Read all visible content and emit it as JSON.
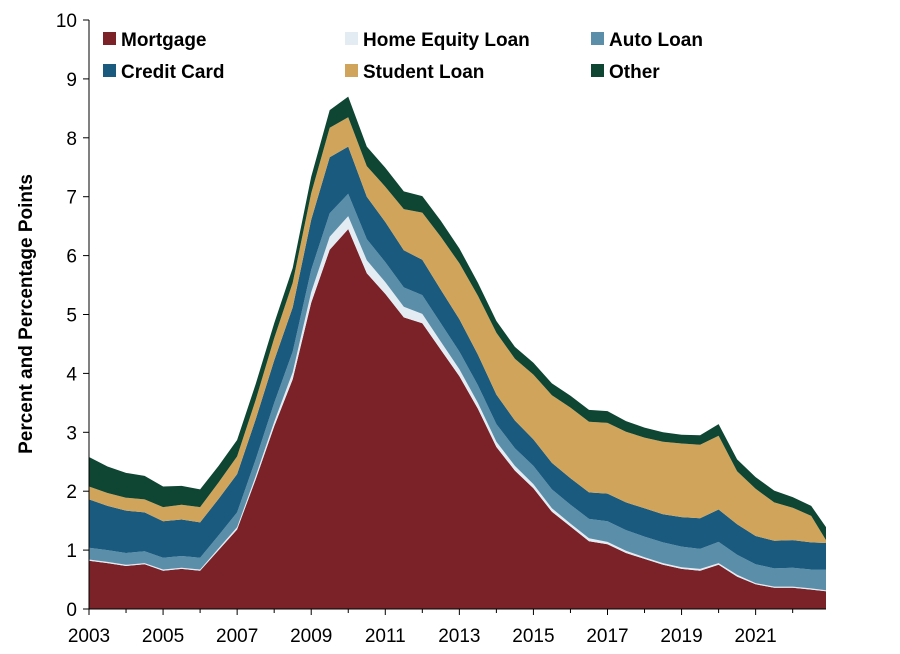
{
  "chart_data": {
    "type": "area",
    "stacked": true,
    "title": "",
    "xlabel": "",
    "ylabel": "Percent and Percentage Points",
    "xlim": [
      2003,
      2022.9
    ],
    "ylim": [
      0,
      10
    ],
    "x_ticks": [
      "2003",
      "2005",
      "2007",
      "2009",
      "2011",
      "2013",
      "2015",
      "2017",
      "2019",
      "2021"
    ],
    "y_ticks": [
      "0",
      "1",
      "2",
      "3",
      "4",
      "5",
      "6",
      "7",
      "8",
      "9",
      "10"
    ],
    "grid": false,
    "legend_position": "top",
    "x": [
      2003.0,
      2003.5,
      2004.0,
      2004.5,
      2005.0,
      2005.5,
      2006.0,
      2006.5,
      2007.0,
      2007.5,
      2008.0,
      2008.5,
      2009.0,
      2009.5,
      2010.0,
      2010.5,
      2011.0,
      2011.5,
      2012.0,
      2012.5,
      2013.0,
      2013.5,
      2014.0,
      2014.5,
      2015.0,
      2015.5,
      2016.0,
      2016.5,
      2017.0,
      2017.5,
      2018.0,
      2018.5,
      2019.0,
      2019.5,
      2020.0,
      2020.5,
      2021.0,
      2021.5,
      2022.0,
      2022.5,
      2022.9
    ],
    "series": [
      {
        "name": "Mortgage",
        "color": "#7b2229",
        "values": [
          0.82,
          0.78,
          0.73,
          0.76,
          0.65,
          0.68,
          0.65,
          1.0,
          1.35,
          2.2,
          3.1,
          3.9,
          5.2,
          6.1,
          6.45,
          5.7,
          5.35,
          4.95,
          4.85,
          4.4,
          3.95,
          3.4,
          2.75,
          2.35,
          2.05,
          1.65,
          1.4,
          1.15,
          1.1,
          0.95,
          0.85,
          0.75,
          0.68,
          0.65,
          0.75,
          0.55,
          0.42,
          0.36,
          0.36,
          0.33,
          0.3
        ]
      },
      {
        "name": "Home Equity Loan",
        "color": "#e3ecf3",
        "values": [
          0.02,
          0.02,
          0.02,
          0.02,
          0.02,
          0.02,
          0.02,
          0.03,
          0.04,
          0.06,
          0.08,
          0.12,
          0.18,
          0.22,
          0.22,
          0.22,
          0.2,
          0.18,
          0.16,
          0.14,
          0.12,
          0.1,
          0.09,
          0.08,
          0.07,
          0.06,
          0.05,
          0.05,
          0.04,
          0.04,
          0.03,
          0.03,
          0.03,
          0.03,
          0.03,
          0.03,
          0.02,
          0.02,
          0.02,
          0.02,
          0.02
        ]
      },
      {
        "name": "Auto Loan",
        "color": "#5a8ea9",
        "values": [
          0.2,
          0.2,
          0.2,
          0.2,
          0.2,
          0.2,
          0.2,
          0.22,
          0.25,
          0.28,
          0.32,
          0.35,
          0.38,
          0.4,
          0.38,
          0.36,
          0.34,
          0.33,
          0.32,
          0.31,
          0.3,
          0.3,
          0.3,
          0.3,
          0.31,
          0.32,
          0.32,
          0.33,
          0.35,
          0.35,
          0.35,
          0.35,
          0.35,
          0.34,
          0.36,
          0.34,
          0.32,
          0.31,
          0.32,
          0.32,
          0.35
        ]
      },
      {
        "name": "Credit Card",
        "color": "#1a5a7e",
        "values": [
          0.82,
          0.75,
          0.72,
          0.66,
          0.62,
          0.62,
          0.6,
          0.62,
          0.65,
          0.68,
          0.72,
          0.75,
          0.85,
          0.95,
          0.8,
          0.72,
          0.68,
          0.63,
          0.6,
          0.57,
          0.55,
          0.52,
          0.5,
          0.47,
          0.45,
          0.45,
          0.45,
          0.45,
          0.47,
          0.47,
          0.48,
          0.48,
          0.5,
          0.52,
          0.55,
          0.52,
          0.48,
          0.47,
          0.47,
          0.46,
          0.45
        ]
      },
      {
        "name": "Student Loan",
        "color": "#d0a55b",
        "values": [
          0.22,
          0.22,
          0.22,
          0.22,
          0.24,
          0.25,
          0.26,
          0.28,
          0.3,
          0.33,
          0.38,
          0.42,
          0.45,
          0.5,
          0.5,
          0.52,
          0.6,
          0.7,
          0.8,
          0.9,
          0.95,
          1.0,
          1.05,
          1.05,
          1.1,
          1.15,
          1.2,
          1.2,
          1.2,
          1.2,
          1.2,
          1.23,
          1.25,
          1.25,
          1.25,
          0.9,
          0.8,
          0.65,
          0.55,
          0.45,
          0.05
        ]
      },
      {
        "name": "Other",
        "color": "#0f4533",
        "values": [
          0.5,
          0.45,
          0.42,
          0.4,
          0.35,
          0.32,
          0.3,
          0.28,
          0.28,
          0.27,
          0.25,
          0.25,
          0.28,
          0.3,
          0.35,
          0.33,
          0.32,
          0.3,
          0.28,
          0.27,
          0.25,
          0.22,
          0.2,
          0.2,
          0.2,
          0.2,
          0.2,
          0.2,
          0.2,
          0.18,
          0.17,
          0.16,
          0.15,
          0.16,
          0.2,
          0.2,
          0.2,
          0.2,
          0.18,
          0.17,
          0.22
        ]
      }
    ],
    "legend_order": [
      "Mortgage",
      "Home Equity Loan",
      "Auto Loan",
      "Credit Card",
      "Student Loan",
      "Other"
    ]
  }
}
